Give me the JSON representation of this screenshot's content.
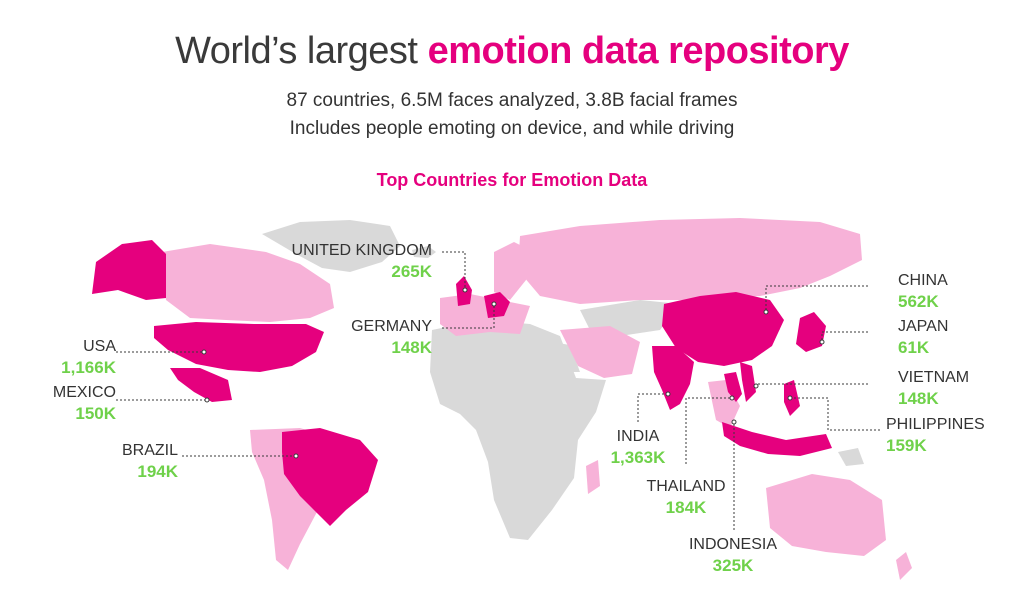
{
  "header": {
    "title_plain": "World’s largest",
    "title_accent": "emotion data repository",
    "subtitle_line1": "87 countries, 6.5M faces analyzed, 3.8B facial frames",
    "subtitle_line2": "Includes people emoting on device, and while driving"
  },
  "map": {
    "heading": "Top Countries for Emotion Data",
    "colors": {
      "highlight": "#e5007e",
      "covered": "#f7b2d8",
      "not_covered": "#d9d9d9",
      "value_text": "#6fd14a"
    },
    "countries": [
      {
        "name": "United Kingdom",
        "value": "265K"
      },
      {
        "name": "Germany",
        "value": "148K"
      },
      {
        "name": "USA",
        "value": "1,166K"
      },
      {
        "name": "Mexico",
        "value": "150K"
      },
      {
        "name": "Brazil",
        "value": "194K"
      },
      {
        "name": "India",
        "value": "1,363K"
      },
      {
        "name": "Thailand",
        "value": "184K"
      },
      {
        "name": "Indonesia",
        "value": "325K"
      },
      {
        "name": "China",
        "value": "562K"
      },
      {
        "name": "Japan",
        "value": "61K"
      },
      {
        "name": "Vietnam",
        "value": "148K"
      },
      {
        "name": "Philippines",
        "value": "159K"
      }
    ]
  }
}
